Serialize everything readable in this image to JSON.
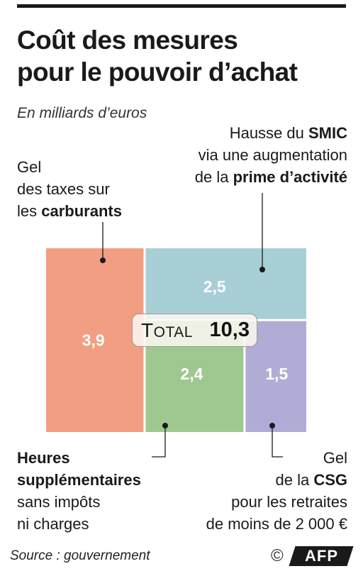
{
  "header": {
    "title_line1": "Coût des mesures",
    "title_line2": "pour le pouvoir d’achat",
    "subtitle": "En milliards d’euros"
  },
  "labels": {
    "smic": {
      "l1": "Hausse du ",
      "l1b": "SMIC",
      "l2": "via une augmentation",
      "l3": "de la ",
      "l3b": "prime d’activité"
    },
    "carburants": {
      "l1": "Gel",
      "l2": "des taxes sur",
      "l3": "les ",
      "l3b": "carburants"
    },
    "heures": {
      "l1b": "Heures",
      "l2b": "supplémentaires",
      "l3": "sans impôts",
      "l4": "ni charges"
    },
    "csg": {
      "l1": "Gel",
      "l2": "de la ",
      "l2b": "CSG",
      "l3": "pour les retraites",
      "l4": "de moins de 2 000 €"
    }
  },
  "total": {
    "first_letter": "T",
    "rest": "OTAL",
    "value": "10,3"
  },
  "chart_data": {
    "type": "treemap",
    "title": "Coût des mesures pour le pouvoir d’achat",
    "unit": "En milliards d’euros",
    "total": 10.3,
    "items": [
      {
        "value": 3.9,
        "value_label": "3,9",
        "color": "#f29e82"
      },
      {
        "value": 2.5,
        "value_label": "2,5",
        "color": "#a8ced6"
      },
      {
        "value": 2.4,
        "value_label": "2,4",
        "color": "#9ec88f"
      },
      {
        "value": 1.5,
        "value_label": "1,5",
        "color": "#b1acd5"
      }
    ]
  },
  "footer": {
    "source": "Source : gouvernement",
    "copyright": "©",
    "logo_text": "AFP"
  }
}
